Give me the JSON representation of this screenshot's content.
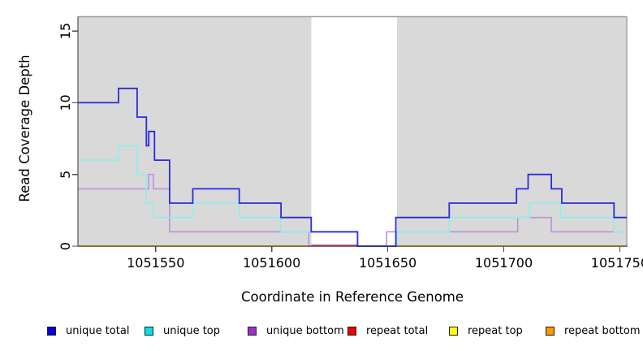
{
  "figure": {
    "x_axis_label": "Coordinate in Reference Genome",
    "y_axis_label": "Read Coverage Depth"
  },
  "chart_data": {
    "type": "line",
    "subtype": "step",
    "title": "",
    "xlabel": "Coordinate in Reference Genome",
    "ylabel": "Read Coverage Depth",
    "xlim": [
      1051516.5,
      1051753
    ],
    "ylim": [
      0,
      16
    ],
    "x_ticks": [
      1051550,
      1051600,
      1051650,
      1051700,
      1051750
    ],
    "y_ticks": [
      0,
      5,
      10,
      15
    ],
    "grid": false,
    "legend_position": "bottom",
    "plot_background": "#d9d9d9",
    "outer_background": "#ffffff",
    "masked_gap_band": {
      "x_start": 1051617,
      "x_end": 1051654,
      "color": "#ffffff"
    },
    "series": [
      {
        "name": "unique total",
        "line_color": "#2b2be2",
        "legend_color": "#0000dd",
        "segments": [
          {
            "points": [
              [
                1051516.5,
                10
              ],
              [
                1051534,
                11
              ],
              [
                1051542,
                9
              ],
              [
                1051546,
                7
              ],
              [
                1051547,
                8
              ],
              [
                1051549.5,
                6
              ],
              [
                1051556,
                3
              ],
              [
                1051566,
                4
              ],
              [
                1051586,
                3
              ],
              [
                1051604,
                2
              ],
              [
                1051617,
                1
              ],
              [
                1051637,
                0
              ],
              [
                1051653.5,
                2
              ],
              [
                1051676.5,
                3
              ],
              [
                1051705.5,
                4
              ],
              [
                1051710.5,
                5
              ],
              [
                1051720.5,
                4
              ],
              [
                1051725,
                3
              ],
              [
                1051747.5,
                2
              ]
            ],
            "end": 1051753
          }
        ]
      },
      {
        "name": "unique top",
        "line_color": "#8ceef0",
        "legend_color": "#00e4ee",
        "segments": [
          {
            "points": [
              [
                1051516.5,
                6
              ],
              [
                1051534,
                7
              ],
              [
                1051542,
                5
              ],
              [
                1051546,
                3
              ],
              [
                1051549,
                2
              ],
              [
                1051566,
                3
              ],
              [
                1051586,
                2
              ],
              [
                1051604,
                1
              ],
              [
                1051637,
                0
              ],
              [
                1051654,
                1
              ],
              [
                1051676.5,
                2
              ],
              [
                1051711,
                3
              ],
              [
                1051724.5,
                2
              ],
              [
                1051747.5,
                1
              ]
            ],
            "end": 1051753
          }
        ]
      },
      {
        "name": "unique bottom",
        "line_color": "#bb92dc",
        "legend_color": "#9a32cd",
        "segments": [
          {
            "points": [
              [
                1051516.5,
                4
              ],
              [
                1051547,
                5
              ],
              [
                1051549,
                4
              ],
              [
                1051556,
                1
              ],
              [
                1051616,
                0
              ],
              [
                1051649.5,
                1
              ],
              [
                1051706,
                2
              ],
              [
                1051720.5,
                1
              ]
            ],
            "end": 1051753
          }
        ]
      },
      {
        "name": "repeat total",
        "line_color": "#e05c80",
        "legend_color": "#ee0000",
        "segments": [
          {
            "points": [
              [
                1051617,
                0
              ]
            ],
            "end": 1051637
          }
        ]
      },
      {
        "name": "repeat top",
        "line_color": "#ffff00",
        "legend_color": "#ffff00",
        "segments": [
          {
            "points": [
              [
                1051516.5,
                0
              ]
            ],
            "end": 1051616
          },
          {
            "points": [
              [
                1051654,
                0
              ]
            ],
            "end": 1051753
          }
        ]
      },
      {
        "name": "repeat bottom",
        "line_color": "#ff9d1e",
        "legend_color": "#ff9800",
        "segments": [
          {
            "points": [
              [
                1051516.5,
                0
              ]
            ],
            "end": 1051616
          },
          {
            "points": [
              [
                1051654,
                0
              ]
            ],
            "end": 1051753
          }
        ]
      }
    ]
  }
}
